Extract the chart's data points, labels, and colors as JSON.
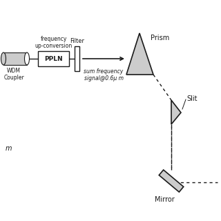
{
  "bg_color": "#ffffff",
  "line_color": "#1a1a1a",
  "fill_color": "#cccccc",
  "labels": {
    "freq_upconv": "frequency\nup-conversion",
    "ppln": "PPLN",
    "filter": "Filter",
    "sum_freq": "sum frequency\nsignal@0.6μ m",
    "wdm": "WDM\nCoupler",
    "prism": "Prism",
    "slit": "Slit",
    "mirror": "Mirror",
    "m_label": "m"
  },
  "fig_width": 3.2,
  "fig_height": 3.2,
  "dpi": 100
}
